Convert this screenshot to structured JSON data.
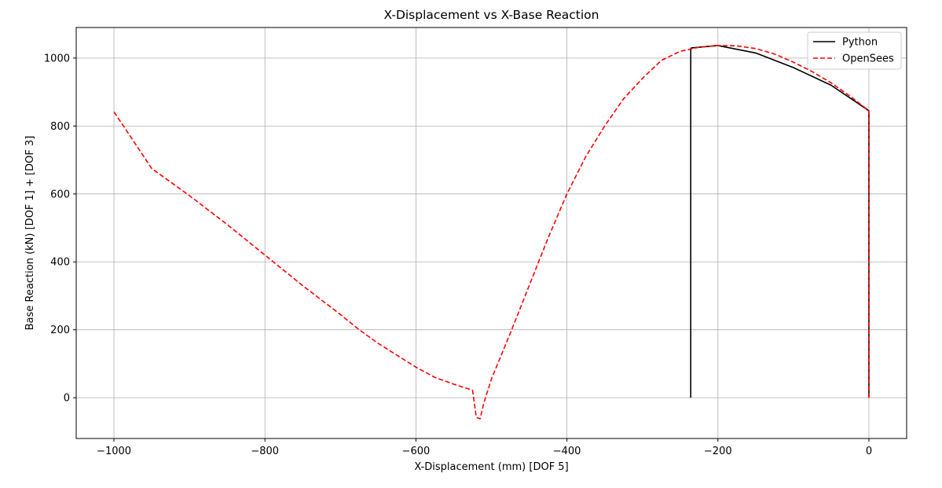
{
  "chart_data": {
    "type": "line",
    "title": "X-Displacement vs X-Base Reaction",
    "xlabel": "X-Displacement (mm) [DOF 5]",
    "ylabel": "Base Reaction (kN) [DOF 1] + [DOF 3]",
    "xlim": [
      -1050,
      50
    ],
    "ylim": [
      -120,
      1090
    ],
    "xticks": [
      -1000,
      -800,
      -600,
      -400,
      -200,
      0
    ],
    "yticks": [
      0,
      200,
      400,
      600,
      800,
      1000
    ],
    "xtick_labels": [
      "−1000",
      "−800",
      "−600",
      "−400",
      "−200",
      "0"
    ],
    "ytick_labels": [
      "0",
      "200",
      "400",
      "600",
      "800",
      "1000"
    ],
    "grid": true,
    "legend_position": "top-right",
    "series": [
      {
        "name": "Python",
        "color": "#000000",
        "style": "solid",
        "x": [
          0,
          0,
          -10,
          -50,
          -100,
          -150,
          -200,
          -235,
          -236,
          -236
        ],
        "y": [
          0,
          845,
          860,
          920,
          972,
          1015,
          1037,
          1030,
          1028,
          0
        ]
      },
      {
        "name": "OpenSees",
        "color": "#ff0000",
        "style": "dashed",
        "x": [
          0,
          0,
          -25,
          -50,
          -75,
          -100,
          -125,
          -150,
          -175,
          -200,
          -225,
          -250,
          -275,
          -300,
          -325,
          -350,
          -375,
          -400,
          -425,
          -450,
          -475,
          -500,
          -510,
          -515,
          -520,
          -525,
          -550,
          -575,
          -600,
          -625,
          -650,
          -675,
          -700,
          -750,
          -800,
          -850,
          -900,
          -950,
          -1000
        ],
        "y": [
          0,
          845,
          888,
          927,
          960,
          988,
          1012,
          1028,
          1036,
          1037,
          1032,
          1020,
          993,
          940,
          880,
          800,
          710,
          600,
          470,
          330,
          190,
          55,
          -15,
          -62,
          -58,
          22,
          40,
          60,
          90,
          125,
          160,
          200,
          245,
          330,
          420,
          510,
          595,
          675,
          842
        ]
      }
    ]
  }
}
